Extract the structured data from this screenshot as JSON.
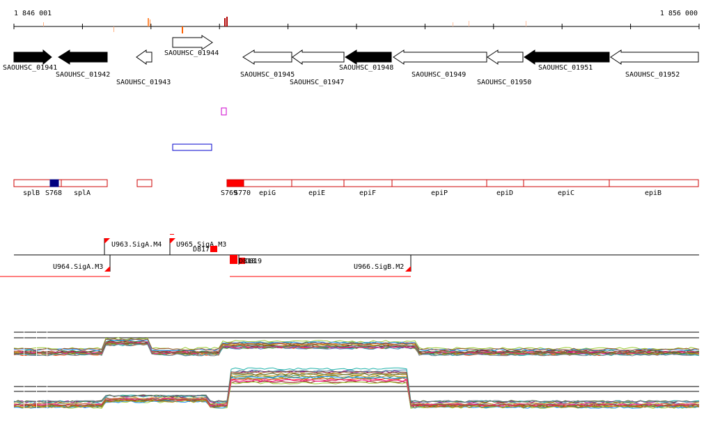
{
  "coordinates": {
    "start_label": "1 846 001",
    "end_label": "1 856 000"
  },
  "genes": [
    {
      "id": "SAOUHSC_01941",
      "strand": "+",
      "fill": "#000000"
    },
    {
      "id": "SAOUHSC_01942",
      "strand": "-",
      "fill": "#000000"
    },
    {
      "id": "SAOUHSC_01943",
      "strand": "-",
      "fill": "#ffffff"
    },
    {
      "id": "SAOUHSC_01944",
      "strand": "+",
      "fill": "#ffffff"
    },
    {
      "id": "SAOUHSC_01945",
      "strand": "-",
      "fill": "#ffffff"
    },
    {
      "id": "SAOUHSC_01947",
      "strand": "-",
      "fill": "#ffffff"
    },
    {
      "id": "SAOUHSC_01948",
      "strand": "-",
      "fill": "#000000"
    },
    {
      "id": "SAOUHSC_01949",
      "strand": "-",
      "fill": "#ffffff"
    },
    {
      "id": "SAOUHSC_01950",
      "strand": "-",
      "fill": "#ffffff"
    },
    {
      "id": "SAOUHSC_01951",
      "strand": "-",
      "fill": "#000000"
    },
    {
      "id": "SAOUHSC_01952",
      "strand": "-",
      "fill": "#ffffff"
    }
  ],
  "annotations": [
    {
      "name": "splB"
    },
    {
      "name": "S768"
    },
    {
      "name": "splA"
    },
    {
      "name": "S769"
    },
    {
      "name": "S770"
    },
    {
      "name": "epiG"
    },
    {
      "name": "epiE"
    },
    {
      "name": "epiF"
    },
    {
      "name": "epiP"
    },
    {
      "name": "epiD"
    },
    {
      "name": "epiC"
    },
    {
      "name": "epiB"
    }
  ],
  "transcripts": [
    {
      "name": "U963.SigA.M4"
    },
    {
      "name": "U965.SigA.M3"
    },
    {
      "name": "D817"
    },
    {
      "name": "U964.SigA.M3"
    },
    {
      "name": "D818"
    },
    {
      "name": "D819"
    },
    {
      "name": "U966.SigB.M2"
    }
  ],
  "colors": {
    "accent": "#ff0000",
    "outline": "#cc0000",
    "blue": "#0000cc",
    "navy": "#000080",
    "magenta": "#cc00cc"
  }
}
